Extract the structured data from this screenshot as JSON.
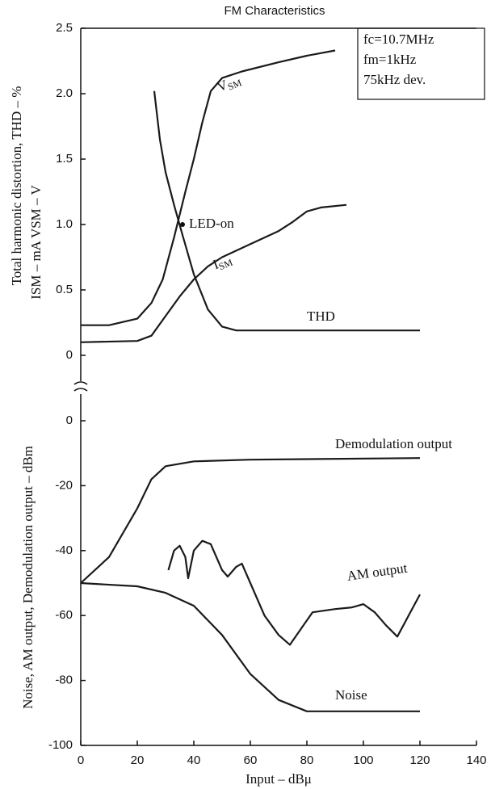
{
  "chart_data": [
    {
      "type": "line",
      "title": "FM Characteristics",
      "y_label": "Total harmonic distortion, THD  –  %",
      "y_label_2": "ISM  –  mA   VSM  –  V",
      "xlim": [
        0,
        140
      ],
      "ylim": [
        0,
        2.5
      ],
      "yticks": [
        0,
        0.5,
        {
          "value": 1,
          "label": "1.0"
        },
        1.5,
        {
          "value": 2,
          "label": "2.0"
        },
        2.5
      ],
      "conditions": [
        "fc=10.7MHz",
        "fm=1kHz",
        "75kHz dev."
      ],
      "annotations": [
        {
          "text": "LED-on",
          "x": 36,
          "y": 1.0
        }
      ],
      "series": [
        {
          "name": "VSM",
          "color": "#1a1a1a",
          "x": [
            0,
            10,
            20,
            25,
            29,
            33,
            37,
            40,
            43,
            46,
            50,
            57,
            70,
            80,
            90
          ],
          "values": [
            0.23,
            0.23,
            0.28,
            0.4,
            0.58,
            0.9,
            1.25,
            1.5,
            1.78,
            2.02,
            2.12,
            2.17,
            2.24,
            2.29,
            2.33
          ]
        },
        {
          "name": "ISM",
          "color": "#1a1a1a",
          "x": [
            0,
            20,
            25,
            30,
            35,
            40,
            45,
            50,
            60,
            70,
            75,
            80,
            85,
            94
          ],
          "values": [
            0.1,
            0.11,
            0.15,
            0.3,
            0.45,
            0.58,
            0.68,
            0.75,
            0.85,
            0.95,
            1.02,
            1.1,
            1.13,
            1.15
          ]
        },
        {
          "name": "THD",
          "color": "#1a1a1a",
          "x": [
            26,
            28,
            30,
            33,
            36,
            40,
            45,
            50,
            55,
            60,
            120
          ],
          "values": [
            2.02,
            1.65,
            1.4,
            1.15,
            0.92,
            0.62,
            0.35,
            0.22,
            0.19,
            0.19,
            0.19
          ]
        }
      ]
    },
    {
      "type": "line",
      "y_label": "Noise, AM output, Demodulation output  –  dBm",
      "x_label": "Input  –  dBμ",
      "xlim": [
        0,
        140
      ],
      "ylim": [
        -100,
        0
      ],
      "xticks": [
        0,
        20,
        40,
        60,
        80,
        100,
        120,
        140
      ],
      "yticks": [
        -100,
        -80,
        -60,
        -40,
        -20,
        0
      ],
      "series": [
        {
          "name": "Demodulation output",
          "color": "#1a1a1a",
          "x": [
            0,
            10,
            20,
            25,
            30,
            40,
            60,
            120
          ],
          "values": [
            -50,
            -42,
            -27,
            -18,
            -14,
            -12.5,
            -12,
            -11.5
          ]
        },
        {
          "name": "AM output",
          "color": "#1a1a1a",
          "x": [
            31,
            33,
            35,
            37,
            38,
            40,
            43,
            46,
            50,
            52,
            55,
            57,
            60,
            65,
            70,
            74,
            78,
            82,
            90,
            96,
            100,
            104,
            108,
            112,
            116,
            120
          ],
          "values": [
            -46,
            -40,
            -38.5,
            -42,
            -48.5,
            -40,
            -37,
            -38,
            -46,
            -48,
            -45,
            -44,
            -50,
            -60,
            -66,
            -69,
            -64,
            -59,
            -58,
            -57.5,
            -56.5,
            -59,
            -63,
            -66.5,
            -60,
            -53.5
          ]
        },
        {
          "name": "Noise",
          "color": "#1a1a1a",
          "x": [
            0,
            20,
            30,
            40,
            50,
            60,
            70,
            80,
            120
          ],
          "values": [
            -50,
            -51,
            -53,
            -57,
            -66,
            -78,
            -86,
            -89.5,
            -89.5
          ]
        }
      ]
    }
  ]
}
